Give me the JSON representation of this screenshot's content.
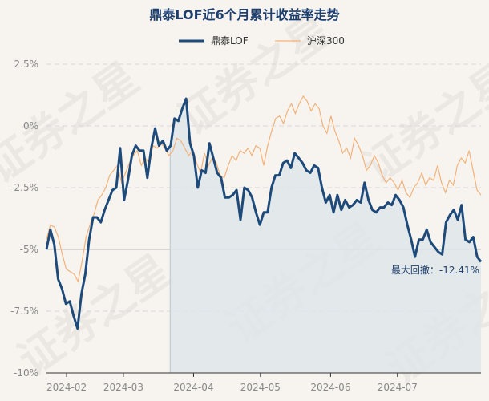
{
  "chart_data": {
    "type": "line",
    "title": "鼎泰LOF近6个月累计收益率走势",
    "colors": {
      "primary": "#1e4a7a",
      "secondary": "#f2b27a",
      "drawdown_fill": "#dfe5ea",
      "grid": "#d9d9d9",
      "zero_line": "#c8c8c8"
    },
    "ylim": [
      -10,
      2.5
    ],
    "yticks": [
      2.5,
      0,
      -2.5,
      -5,
      -7.5,
      -10
    ],
    "ytick_labels": [
      "2.5%",
      "0%",
      "-2.5%",
      "-5%",
      "-7.5%",
      "-10%"
    ],
    "x_range": [
      0,
      130
    ],
    "xticks": [
      {
        "x": 6,
        "label": "2024-02"
      },
      {
        "x": 23,
        "label": "2024-03"
      },
      {
        "x": 44,
        "label": "2024-04"
      },
      {
        "x": 64,
        "label": "2024-05"
      },
      {
        "x": 85,
        "label": "2024-06"
      },
      {
        "x": 105,
        "label": "2024-07"
      }
    ],
    "annotation": {
      "label": "最大回撤：",
      "value": "-12.41%"
    },
    "drawdown": {
      "start_x": 37,
      "end_x": 130,
      "baseline": -5
    },
    "watermark": "证券之星",
    "series": [
      {
        "name": "鼎泰LOF",
        "values": [
          -5.0,
          -4.2,
          -4.8,
          -6.2,
          -6.6,
          -7.2,
          -7.1,
          -7.7,
          -8.2,
          -6.8,
          -6.0,
          -4.6,
          -3.7,
          -3.7,
          -3.9,
          -3.4,
          -3.0,
          -2.6,
          -2.5,
          -0.9,
          -3.0,
          -2.2,
          -1.2,
          -0.8,
          -1.0,
          -1.0,
          -2.1,
          -0.9,
          -0.1,
          -0.8,
          -0.6,
          -1.0,
          -0.8,
          0.3,
          0.2,
          0.7,
          1.1,
          -0.7,
          -1.2,
          -2.5,
          -1.8,
          -1.9,
          -0.7,
          -1.3,
          -1.9,
          -2.1,
          -2.9,
          -2.9,
          -2.8,
          -2.6,
          -3.8,
          -2.5,
          -2.6,
          -2.9,
          -3.5,
          -4.0,
          -3.5,
          -3.5,
          -2.5,
          -2.0,
          -2.0,
          -1.5,
          -1.4,
          -1.7,
          -1.1,
          -1.3,
          -1.5,
          -1.8,
          -1.9,
          -1.6,
          -1.7,
          -2.5,
          -3.1,
          -2.8,
          -3.5,
          -2.8,
          -3.4,
          -3.0,
          -3.3,
          -3.2,
          -3.0,
          -3.1,
          -2.3,
          -3.0,
          -3.4,
          -3.5,
          -3.3,
          -3.3,
          -3.1,
          -3.2,
          -2.8,
          -3.0,
          -3.3,
          -4.0,
          -4.6,
          -5.3,
          -4.6,
          -4.6,
          -4.2,
          -4.7,
          -4.9,
          -5.1,
          -5.2,
          -3.9,
          -3.6,
          -3.4,
          -3.8,
          -3.2,
          -4.6,
          -4.7,
          -4.5,
          -5.3,
          -5.5
        ],
        "x_step": 0.94
      },
      {
        "name": "沪深300",
        "values": [
          -4.6,
          -4.0,
          -4.1,
          -4.5,
          -5.2,
          -5.8,
          -5.9,
          -6.0,
          -6.3,
          -5.5,
          -4.5,
          -4.0,
          -3.6,
          -3.0,
          -2.8,
          -2.5,
          -2.0,
          -1.8,
          -1.6,
          -2.3,
          -1.9,
          -1.5,
          -1.2,
          -1.0,
          -1.6,
          -1.3,
          -1.5,
          -0.8,
          -0.9,
          -0.7,
          -0.9,
          -1.2,
          -1.0,
          -0.5,
          -0.6,
          -0.9,
          -1.2,
          -1.0,
          -1.5,
          -1.9,
          -1.1,
          -1.6,
          -1.3,
          -1.5,
          -2.0,
          -2.1,
          -1.6,
          -1.2,
          -1.4,
          -1.0,
          -1.1,
          -0.9,
          -1.2,
          -0.8,
          -0.9,
          -1.6,
          -0.8,
          -0.2,
          0.3,
          0.4,
          0.1,
          0.6,
          0.9,
          0.5,
          0.9,
          1.2,
          1.0,
          0.6,
          0.9,
          0.7,
          0.0,
          -0.3,
          0.4,
          -0.2,
          -0.6,
          -1.1,
          -0.9,
          -1.3,
          -0.5,
          -0.8,
          -1.2,
          -1.8,
          -1.6,
          -1.2,
          -1.5,
          -2.0,
          -2.3,
          -2.1,
          -2.3,
          -2.6,
          -2.2,
          -2.7,
          -2.9,
          -2.5,
          -2.3,
          -1.9,
          -2.4,
          -2.1,
          -2.2,
          -1.6,
          -2.3,
          -2.7,
          -2.2,
          -2.4,
          -1.6,
          -1.3,
          -1.5,
          -1.0,
          -1.8,
          -2.6,
          -2.8
        ],
        "x_step": 0.95
      }
    ]
  }
}
